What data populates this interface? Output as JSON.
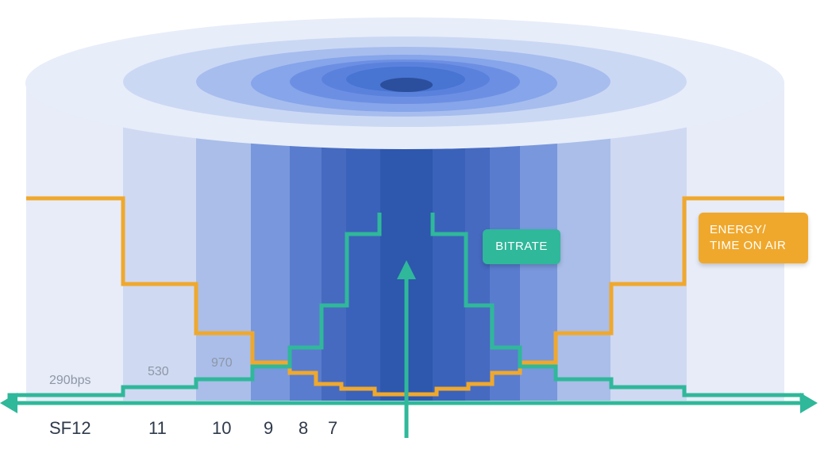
{
  "colors": {
    "bitrate": "#2fb89a",
    "energy": "#f0a82c",
    "cylinder_light": "#dfe7f8",
    "cylinder_dark": "#2c5ab0"
  },
  "labels": {
    "bitrate": "BITRATE",
    "energy_line1": "ENERGY/",
    "energy_line2": "TIME ON AIR"
  },
  "bitrate_ticks": [
    "290bps",
    "530",
    "970"
  ],
  "sf_ticks": [
    "SF12",
    "11",
    "10",
    "9",
    "8",
    "7"
  ]
}
